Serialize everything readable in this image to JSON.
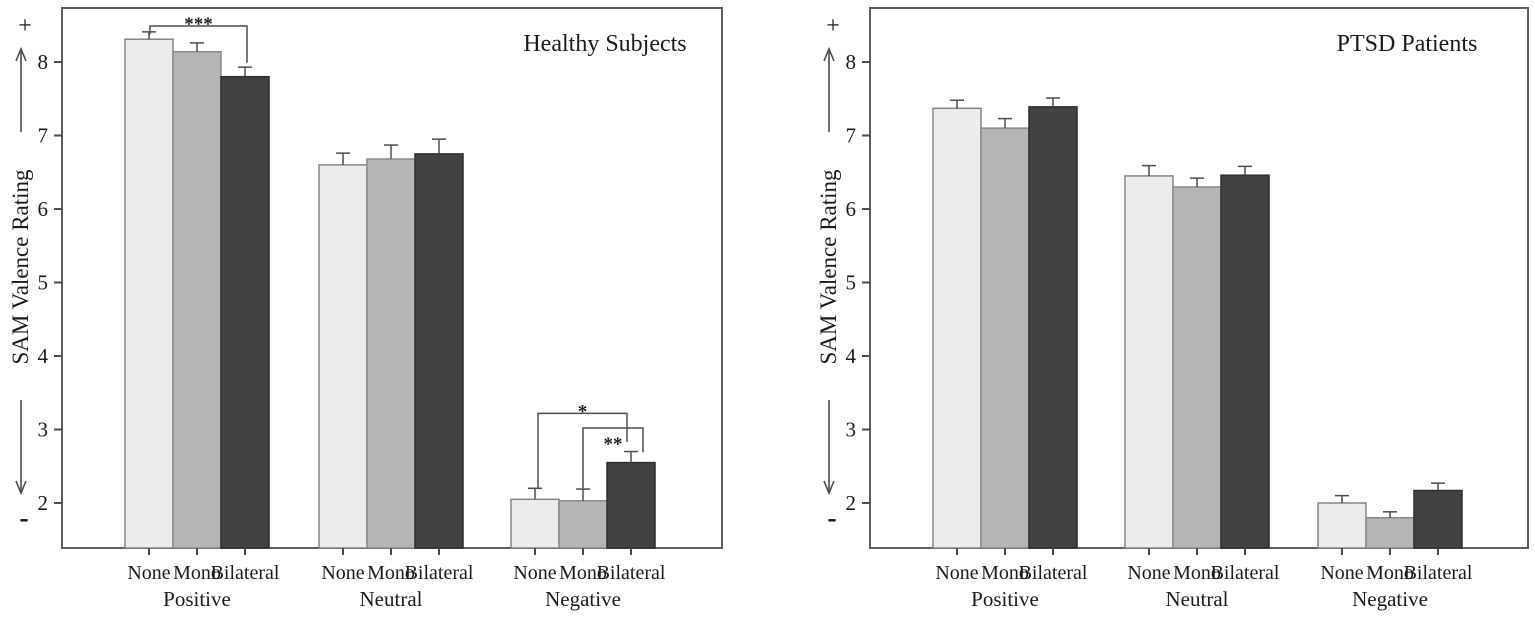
{
  "figure": {
    "background": "#ffffff",
    "text_color": "#1b1b1b",
    "axis_color": "#5f5f5f",
    "tick_color": "#4d4d4d",
    "error_bar_color": "#4d4d4d",
    "bracket_color": "#4d4d4d"
  },
  "chart_data": [
    {
      "type": "bar",
      "title": "Healthy Subjects",
      "ylabel": "SAM Valence Rating",
      "ylabel_plus": "+",
      "ylabel_minus": "-",
      "y_ticks": [
        2,
        3,
        4,
        5,
        6,
        7,
        8
      ],
      "ylim": [
        1.4,
        8.75
      ],
      "grid": false,
      "legend": "none",
      "categories": [
        "Positive",
        "Neutral",
        "Negative"
      ],
      "bar_labels": [
        "None",
        "Mono",
        "Bilateral"
      ],
      "series": [
        {
          "name": "None",
          "color": "#ececec",
          "edge": "#858585",
          "values": [
            8.31,
            6.6,
            2.05
          ],
          "errors": [
            0.1,
            0.16,
            0.15
          ]
        },
        {
          "name": "Mono",
          "color": "#b5b5b5",
          "edge": "#8a8a8a",
          "values": [
            8.14,
            6.68,
            2.03
          ],
          "errors": [
            0.12,
            0.19,
            0.16
          ]
        },
        {
          "name": "Bilateral",
          "color": "#424242",
          "edge": "#2f2f2f",
          "values": [
            7.8,
            6.75,
            2.55
          ],
          "errors": [
            0.13,
            0.2,
            0.15
          ]
        }
      ],
      "significance": [
        {
          "label": "***",
          "group": 0,
          "bar_a": 0,
          "bar_b": 2,
          "line_v": 8.49,
          "drop_a_v": 8.38,
          "drop_b_v": 7.99,
          "label_side": "above",
          "a_dx": 1,
          "b_dx": 2
        },
        {
          "label": "*",
          "group": 2,
          "bar_a": 0,
          "bar_b": 2,
          "line_v": 3.22,
          "drop_a_v": 2.2,
          "drop_b_v": 2.83,
          "label_side": "above",
          "a_dx": 3,
          "b_dx": -4
        },
        {
          "label": "**",
          "group": 2,
          "bar_a": 1,
          "bar_b": 2,
          "line_v": 3.02,
          "drop_a_v": 2.2,
          "drop_b_v": 2.69,
          "label_side": "below",
          "a_dx": 0,
          "b_dx": 12
        }
      ]
    },
    {
      "type": "bar",
      "title": "PTSD Patients",
      "ylabel": "SAM Valence Rating",
      "ylabel_plus": "+",
      "ylabel_minus": "-",
      "y_ticks": [
        2,
        3,
        4,
        5,
        6,
        7,
        8
      ],
      "ylim": [
        1.4,
        8.75
      ],
      "grid": false,
      "legend": "none",
      "categories": [
        "Positive",
        "Neutral",
        "Negative"
      ],
      "bar_labels": [
        "None",
        "Mono",
        "Bilateral"
      ],
      "series": [
        {
          "name": "None",
          "color": "#ececec",
          "edge": "#858585",
          "values": [
            7.37,
            6.45,
            2.0
          ],
          "errors": [
            0.11,
            0.14,
            0.1
          ]
        },
        {
          "name": "Mono",
          "color": "#b5b5b5",
          "edge": "#8a8a8a",
          "values": [
            7.1,
            6.3,
            1.8
          ],
          "errors": [
            0.13,
            0.12,
            0.08
          ]
        },
        {
          "name": "Bilateral",
          "color": "#424242",
          "edge": "#2f2f2f",
          "values": [
            7.39,
            6.46,
            2.17
          ],
          "errors": [
            0.12,
            0.12,
            0.1
          ]
        }
      ],
      "significance": []
    }
  ]
}
